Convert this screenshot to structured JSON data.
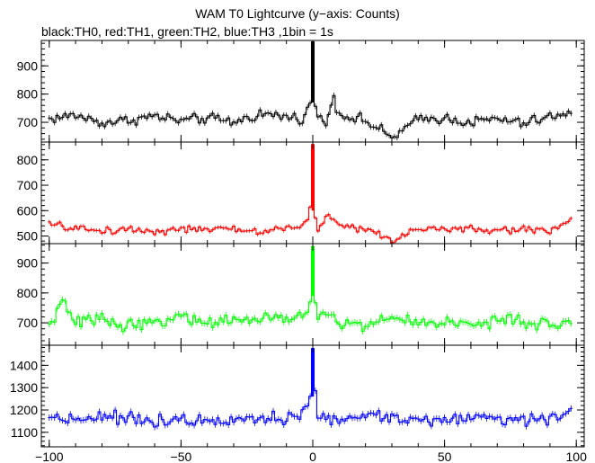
{
  "title": "WAM T0 Lightcurve (y−axis: Counts)",
  "subtitle": "black:TH0, red:TH1, green:TH2, blue:TH3 ,1bin = 1s",
  "chart_data": {
    "type": "line",
    "xlim": [
      -103,
      103
    ],
    "x_ticks": [
      -100,
      -50,
      0,
      50,
      100
    ],
    "x_tick_labels": [
      "−100",
      "−50",
      "0",
      "50",
      "100"
    ],
    "panels": [
      {
        "series": "TH0",
        "color": "#000000",
        "ylim": [
          630,
          990
        ],
        "y_ticks": [
          700,
          800,
          900
        ],
        "y_tick_labels": [
          "700",
          "800",
          "900"
        ],
        "baseline": 710,
        "noise": 28,
        "peak": {
          "x": 0,
          "value": 985
        },
        "x": [
          -100,
          -90,
          -80,
          -70,
          -60,
          -50,
          -40,
          -30,
          -20,
          -10,
          -5,
          -2,
          -1,
          0,
          1,
          2,
          5,
          8,
          10,
          20,
          30,
          40,
          50,
          60,
          70,
          80,
          90,
          98
        ],
        "values": [
          712,
          725,
          698,
          708,
          722,
          705,
          715,
          700,
          730,
          720,
          712,
          740,
          770,
          985,
          760,
          715,
          700,
          790,
          730,
          705,
          645,
          710,
          715,
          700,
          712,
          695,
          720,
          725
        ]
      },
      {
        "series": "TH1",
        "color": "#ff0000",
        "ylim": [
          470,
          870
        ],
        "y_ticks": [
          500,
          600,
          700,
          800
        ],
        "y_tick_labels": [
          "500",
          "600",
          "700",
          "800"
        ],
        "baseline": 525,
        "noise": 22,
        "peak": {
          "x": 0,
          "value": 860
        },
        "x": [
          -100,
          -90,
          -80,
          -70,
          -60,
          -50,
          -40,
          -30,
          -20,
          -10,
          -5,
          -2,
          -1,
          0,
          1,
          2,
          5,
          10,
          20,
          30,
          40,
          50,
          60,
          70,
          80,
          90,
          98
        ],
        "values": [
          545,
          530,
          520,
          528,
          518,
          530,
          522,
          528,
          515,
          535,
          530,
          560,
          600,
          860,
          570,
          530,
          580,
          545,
          528,
          480,
          535,
          525,
          528,
          518,
          530,
          520,
          570
        ]
      },
      {
        "series": "TH2",
        "color": "#00ff00",
        "ylim": [
          625,
          965
        ],
        "y_ticks": [
          700,
          800,
          900
        ],
        "y_tick_labels": [
          "700",
          "800",
          "900"
        ],
        "baseline": 700,
        "noise": 30,
        "peak": {
          "x": 0,
          "value": 955
        },
        "x": [
          -100,
          -95,
          -90,
          -80,
          -70,
          -60,
          -50,
          -40,
          -30,
          -20,
          -10,
          -5,
          -2,
          -1,
          0,
          1,
          2,
          5,
          10,
          20,
          30,
          40,
          50,
          60,
          70,
          80,
          90,
          98
        ],
        "values": [
          690,
          770,
          700,
          715,
          690,
          705,
          720,
          700,
          712,
          705,
          720,
          710,
          740,
          790,
          955,
          760,
          705,
          740,
          700,
          690,
          718,
          700,
          705,
          690,
          712,
          700,
          690,
          705
        ]
      },
      {
        "series": "TH3",
        "color": "#0000ff",
        "ylim": [
          1035,
          1490
        ],
        "y_ticks": [
          1100,
          1200,
          1300,
          1400
        ],
        "y_tick_labels": [
          "1100",
          "1200",
          "1300",
          "1400"
        ],
        "baseline": 1165,
        "noise": 40,
        "peak": {
          "x": 0,
          "value": 1475
        },
        "x": [
          -100,
          -90,
          -80,
          -70,
          -60,
          -50,
          -40,
          -30,
          -20,
          -10,
          -5,
          -2,
          -1,
          0,
          1,
          2,
          5,
          10,
          20,
          30,
          40,
          50,
          60,
          70,
          80,
          90,
          98
        ],
        "values": [
          1170,
          1160,
          1175,
          1160,
          1150,
          1165,
          1150,
          1170,
          1165,
          1155,
          1175,
          1210,
          1260,
          1475,
          1270,
          1180,
          1160,
          1150,
          1180,
          1165,
          1160,
          1150,
          1170,
          1165,
          1155,
          1160,
          1200
        ]
      }
    ]
  }
}
